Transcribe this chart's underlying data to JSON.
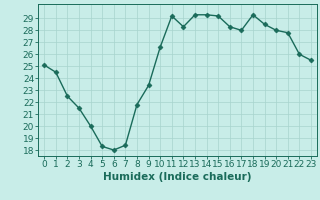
{
  "x": [
    0,
    1,
    2,
    3,
    4,
    5,
    6,
    7,
    8,
    9,
    10,
    11,
    12,
    13,
    14,
    15,
    16,
    17,
    18,
    19,
    20,
    21,
    22,
    23
  ],
  "y": [
    25.1,
    24.5,
    22.5,
    21.5,
    20.0,
    18.3,
    18.0,
    18.4,
    21.8,
    23.4,
    26.6,
    29.2,
    28.3,
    29.3,
    29.3,
    29.2,
    28.3,
    28.0,
    29.3,
    28.5,
    28.0,
    27.8,
    26.0,
    25.5
  ],
  "line_color": "#1a6b5a",
  "marker": "D",
  "marker_size": 2.5,
  "bg_color": "#c8ede8",
  "grid_color": "#a8d4ce",
  "xlabel": "Humidex (Indice chaleur)",
  "ylim": [
    17.5,
    30.2
  ],
  "yticks": [
    18,
    19,
    20,
    21,
    22,
    23,
    24,
    25,
    26,
    27,
    28,
    29
  ],
  "xticks": [
    0,
    1,
    2,
    3,
    4,
    5,
    6,
    7,
    8,
    9,
    10,
    11,
    12,
    13,
    14,
    15,
    16,
    17,
    18,
    19,
    20,
    21,
    22,
    23
  ],
  "xlim": [
    -0.5,
    23.5
  ],
  "tick_fontsize": 6.5,
  "xlabel_fontsize": 7.5,
  "line_width": 1.0
}
